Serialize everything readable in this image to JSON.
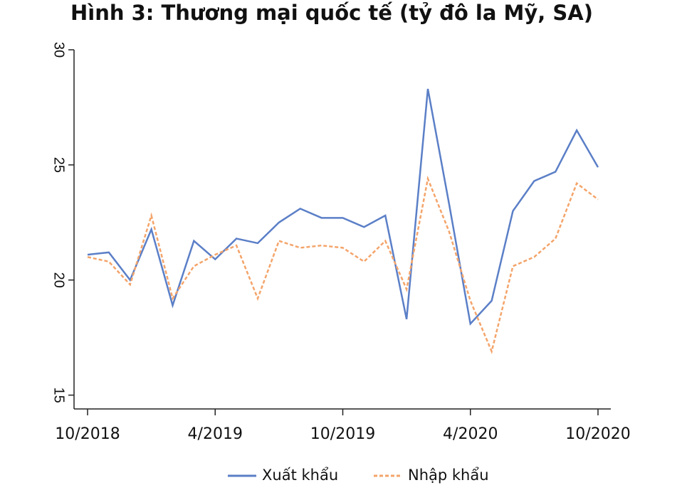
{
  "chart_data": {
    "type": "line",
    "title": "Hình 3: Thương mại quốc tế (tỷ đô la Mỹ, SA)",
    "categories": [
      "10/2018",
      null,
      null,
      null,
      null,
      null,
      "4/2019",
      null,
      null,
      null,
      null,
      null,
      "10/2019",
      null,
      null,
      null,
      null,
      null,
      "4/2020",
      null,
      null,
      null,
      null,
      null,
      "10/2020"
    ],
    "series": [
      {
        "name": "Xuất khẩu",
        "color": "#5b7fc7",
        "dashed": false,
        "values": [
          21.1,
          21.2,
          20.0,
          22.2,
          18.9,
          21.7,
          20.9,
          21.8,
          21.6,
          22.5,
          23.1,
          22.7,
          22.7,
          22.3,
          22.8,
          18.3,
          28.3,
          23.3,
          18.1,
          19.1,
          23.0,
          24.3,
          24.7,
          26.5,
          24.9
        ]
      },
      {
        "name": "Nhập khẩu",
        "color": "#f4a46a",
        "dashed": true,
        "values": [
          21.0,
          20.8,
          19.8,
          22.8,
          19.2,
          20.6,
          21.1,
          21.5,
          19.2,
          21.7,
          21.4,
          21.5,
          21.4,
          20.8,
          21.7,
          19.6,
          24.4,
          22.1,
          19.1,
          16.9,
          20.6,
          21.0,
          21.8,
          24.2,
          23.5
        ]
      }
    ],
    "ylim": [
      14.4,
      30
    ],
    "yticks": [
      15,
      20,
      25,
      30
    ],
    "grid": false,
    "legend": "bottom"
  }
}
